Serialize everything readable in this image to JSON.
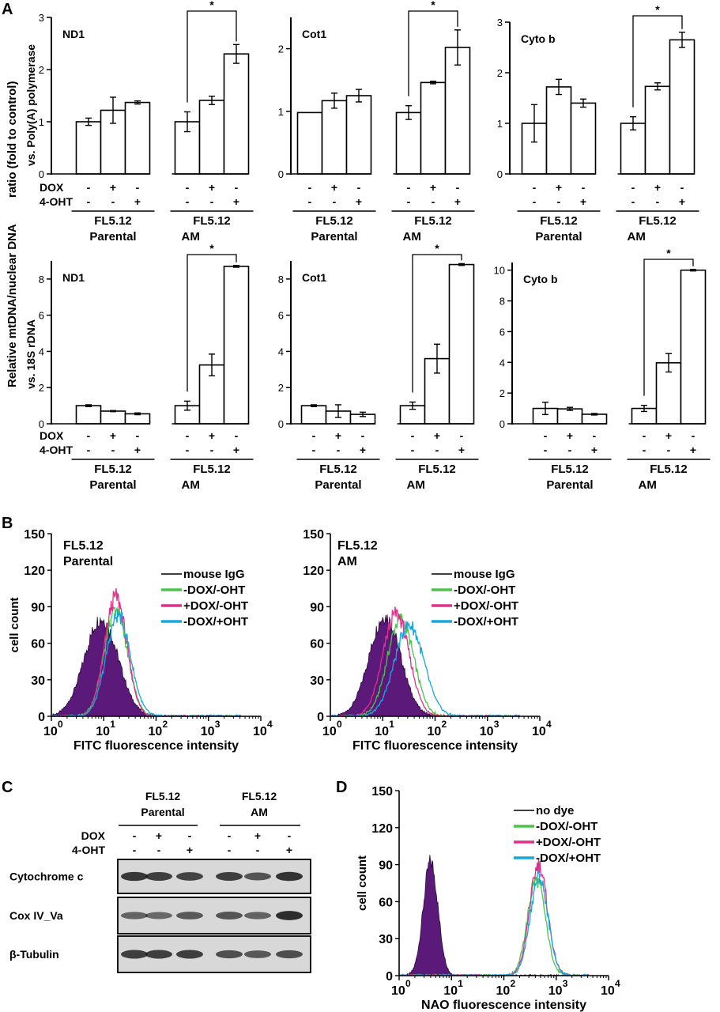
{
  "panel_labels": {
    "A": "A",
    "B": "B",
    "C": "C",
    "D": "D"
  },
  "panelA": {
    "ylabel_line1": "Relative mtDNA/nuclear DNA",
    "ylabel_line2": "ratio (fold to control)",
    "ylabel_top": "vs. Poly(A) polymerase",
    "ylabel_bottom": "vs. 18S rDNA",
    "row_labels": [
      "DOX",
      "4-OHT"
    ],
    "conditions": [
      {
        "dox": "-",
        "oht": "-"
      },
      {
        "dox": "+",
        "oht": "-"
      },
      {
        "dox": "-",
        "oht": "+"
      },
      {
        "dox": "-",
        "oht": "-"
      },
      {
        "dox": "+",
        "oht": "-"
      },
      {
        "dox": "-",
        "oht": "+"
      }
    ],
    "groups": [
      {
        "line1": "FL5.12",
        "line2": "Parental"
      },
      {
        "line1": "FL5.12",
        "line2": "AM"
      }
    ],
    "significance": "*"
  },
  "chart_data": [
    {
      "type": "bar",
      "title": "ND1",
      "reference": "Poly(A) polymerase",
      "ylim": [
        0,
        3
      ],
      "yticks": [
        0,
        1,
        2,
        3
      ],
      "categories": [
        "Parental -/-",
        "Parental DOX",
        "Parental 4-OHT",
        "AM -/-",
        "AM DOX",
        "AM 4-OHT"
      ],
      "values": [
        1.0,
        1.22,
        1.37,
        1.0,
        1.41,
        2.3
      ],
      "errors": [
        0.07,
        0.25,
        0.03,
        0.19,
        0.08,
        0.18
      ]
    },
    {
      "type": "bar",
      "title": "Cot1",
      "reference": "Poly(A) polymerase",
      "ylim": [
        0,
        2.5
      ],
      "yticks": [
        0,
        1,
        2
      ],
      "categories": [
        "Parental -/-",
        "Parental DOX",
        "Parental 4-OHT",
        "AM -/-",
        "AM DOX",
        "AM 4-OHT"
      ],
      "values": [
        0.98,
        1.17,
        1.25,
        0.98,
        1.46,
        2.02
      ],
      "errors": [
        0.0,
        0.12,
        0.1,
        0.11,
        0.02,
        0.28
      ]
    },
    {
      "type": "bar",
      "title": "Cyto b",
      "reference": "Poly(A) polymerase",
      "ylim": [
        0,
        3
      ],
      "yticks": [
        0,
        1,
        2,
        3
      ],
      "categories": [
        "Parental -/-",
        "Parental DOX",
        "Parental 4-OHT",
        "AM -/-",
        "AM DOX",
        "AM 4-OHT"
      ],
      "values": [
        1.0,
        1.72,
        1.4,
        1.0,
        1.73,
        2.65
      ],
      "errors": [
        0.37,
        0.15,
        0.08,
        0.13,
        0.07,
        0.15
      ]
    },
    {
      "type": "bar",
      "title": "ND1",
      "reference": "18S rDNA",
      "ylim": [
        0,
        9
      ],
      "yticks": [
        0,
        2,
        4,
        6,
        8
      ],
      "categories": [
        "Parental -/-",
        "Parental DOX",
        "Parental 4-OHT",
        "AM -/-",
        "AM DOX",
        "AM 4-OHT"
      ],
      "values": [
        1.0,
        0.7,
        0.55,
        1.0,
        3.25,
        8.7
      ],
      "errors": [
        0.05,
        0.03,
        0.05,
        0.25,
        0.6,
        0.05
      ]
    },
    {
      "type": "bar",
      "title": "Cot1",
      "reference": "18S rDNA",
      "ylim": [
        0,
        9
      ],
      "yticks": [
        0,
        2,
        4,
        6,
        8
      ],
      "categories": [
        "Parental -/-",
        "Parental DOX",
        "Parental 4-OHT",
        "AM -/-",
        "AM DOX",
        "AM 4-OHT"
      ],
      "values": [
        1.0,
        0.7,
        0.52,
        1.0,
        3.6,
        8.8
      ],
      "errors": [
        0.05,
        0.35,
        0.12,
        0.2,
        0.8,
        0.05
      ]
    },
    {
      "type": "bar",
      "title": "Cyto b",
      "reference": "18S rDNA",
      "ylim": [
        0,
        10.5
      ],
      "yticks": [
        0,
        2,
        4,
        6,
        8,
        10
      ],
      "categories": [
        "Parental -/-",
        "Parental DOX",
        "Parental 4-OHT",
        "AM -/-",
        "AM DOX",
        "AM 4-OHT"
      ],
      "values": [
        1.0,
        0.97,
        0.62,
        1.0,
        3.97,
        10.0
      ],
      "errors": [
        0.4,
        0.1,
        0.05,
        0.2,
        0.6,
        0.05
      ]
    },
    {
      "type": "histogram",
      "panel": "B",
      "label_line1": "FL5.12",
      "label_line2": "Parental",
      "xlabel": "FITC fluorescence intensity",
      "ylabel": "cell count",
      "xscale": "log",
      "xlim": [
        1,
        10000
      ],
      "ylim": [
        0,
        150
      ],
      "yticks": [
        0,
        30,
        60,
        90,
        120,
        150
      ],
      "series": [
        {
          "name": "mouse IgG",
          "color": "#5b1a7a",
          "filled": true,
          "peak_x": 9,
          "peak_y": 80,
          "width": 0.32
        },
        {
          "name": "-DOX/-OHT",
          "color": "#4cc44c",
          "peak_x": 17,
          "peak_y": 88,
          "width": 0.22
        },
        {
          "name": "+DOX/-OHT",
          "color": "#e0308c",
          "peak_x": 17,
          "peak_y": 98,
          "width": 0.21
        },
        {
          "name": "-DOX/+OHT",
          "color": "#17a7de",
          "peak_x": 19,
          "peak_y": 83,
          "width": 0.23
        }
      ]
    },
    {
      "type": "histogram",
      "panel": "B",
      "label_line1": "FL5.12",
      "label_line2": "AM",
      "xlabel": "FITC fluorescence intensity",
      "ylabel": "",
      "xscale": "log",
      "xlim": [
        1,
        10000
      ],
      "ylim": [
        0,
        150
      ],
      "yticks": [
        0,
        30,
        60,
        90,
        120,
        150
      ],
      "series": [
        {
          "name": "mouse IgG",
          "color": "#5b1a7a",
          "filled": true,
          "peak_x": 11,
          "peak_y": 82,
          "width": 0.3
        },
        {
          "name": "-DOX/-OHT",
          "color": "#4cc44c",
          "peak_x": 22,
          "peak_y": 80,
          "width": 0.25
        },
        {
          "name": "+DOX/-OHT",
          "color": "#e0308c",
          "peak_x": 18,
          "peak_y": 84,
          "width": 0.25
        },
        {
          "name": "-DOX/+OHT",
          "color": "#17a7de",
          "peak_x": 32,
          "peak_y": 75,
          "width": 0.28
        }
      ]
    },
    {
      "type": "histogram",
      "panel": "D",
      "xlabel": "NAO fluorescence intensity",
      "ylabel": "cell count",
      "xscale": "log",
      "xlim": [
        1,
        10000
      ],
      "ylim": [
        0,
        150
      ],
      "yticks": [
        0,
        30,
        60,
        90,
        120,
        150
      ],
      "series": [
        {
          "name": "no dye",
          "color": "#5b1a7a",
          "filled": true,
          "peak_x": 4,
          "peak_y": 92,
          "width": 0.14
        },
        {
          "name": "-DOX/-OHT",
          "color": "#4cc44c",
          "peak_x": 420,
          "peak_y": 78,
          "width": 0.17
        },
        {
          "name": "+DOX/-OHT",
          "color": "#e0308c",
          "peak_x": 460,
          "peak_y": 90,
          "width": 0.17
        },
        {
          "name": "-DOX/+OHT",
          "color": "#17a7de",
          "peak_x": 470,
          "peak_y": 80,
          "width": 0.17
        }
      ]
    }
  ],
  "panelC": {
    "groups": [
      {
        "line1": "FL5.12",
        "line2": "Parental"
      },
      {
        "line1": "FL5.12",
        "line2": "AM"
      }
    ],
    "row_labels": [
      "DOX",
      "4-OHT"
    ],
    "dox": [
      "-",
      "+",
      "-",
      "-",
      "+",
      "-"
    ],
    "oht": [
      "-",
      "-",
      "+",
      "-",
      "-",
      "+"
    ],
    "blots": [
      {
        "name": "Cytochrome c",
        "intensity": [
          0.85,
          0.8,
          0.75,
          0.8,
          0.6,
          0.9
        ]
      },
      {
        "name": "Cox IV_Va",
        "intensity": [
          0.45,
          0.4,
          0.55,
          0.6,
          0.45,
          0.95
        ]
      },
      {
        "name": "β-Tubulin",
        "intensity": [
          0.8,
          0.8,
          0.8,
          0.65,
          0.55,
          0.65
        ]
      }
    ]
  },
  "axis_tick_labels": {
    "log": [
      "0",
      "1",
      "2",
      "3",
      "4"
    ],
    "log_base": "10"
  }
}
